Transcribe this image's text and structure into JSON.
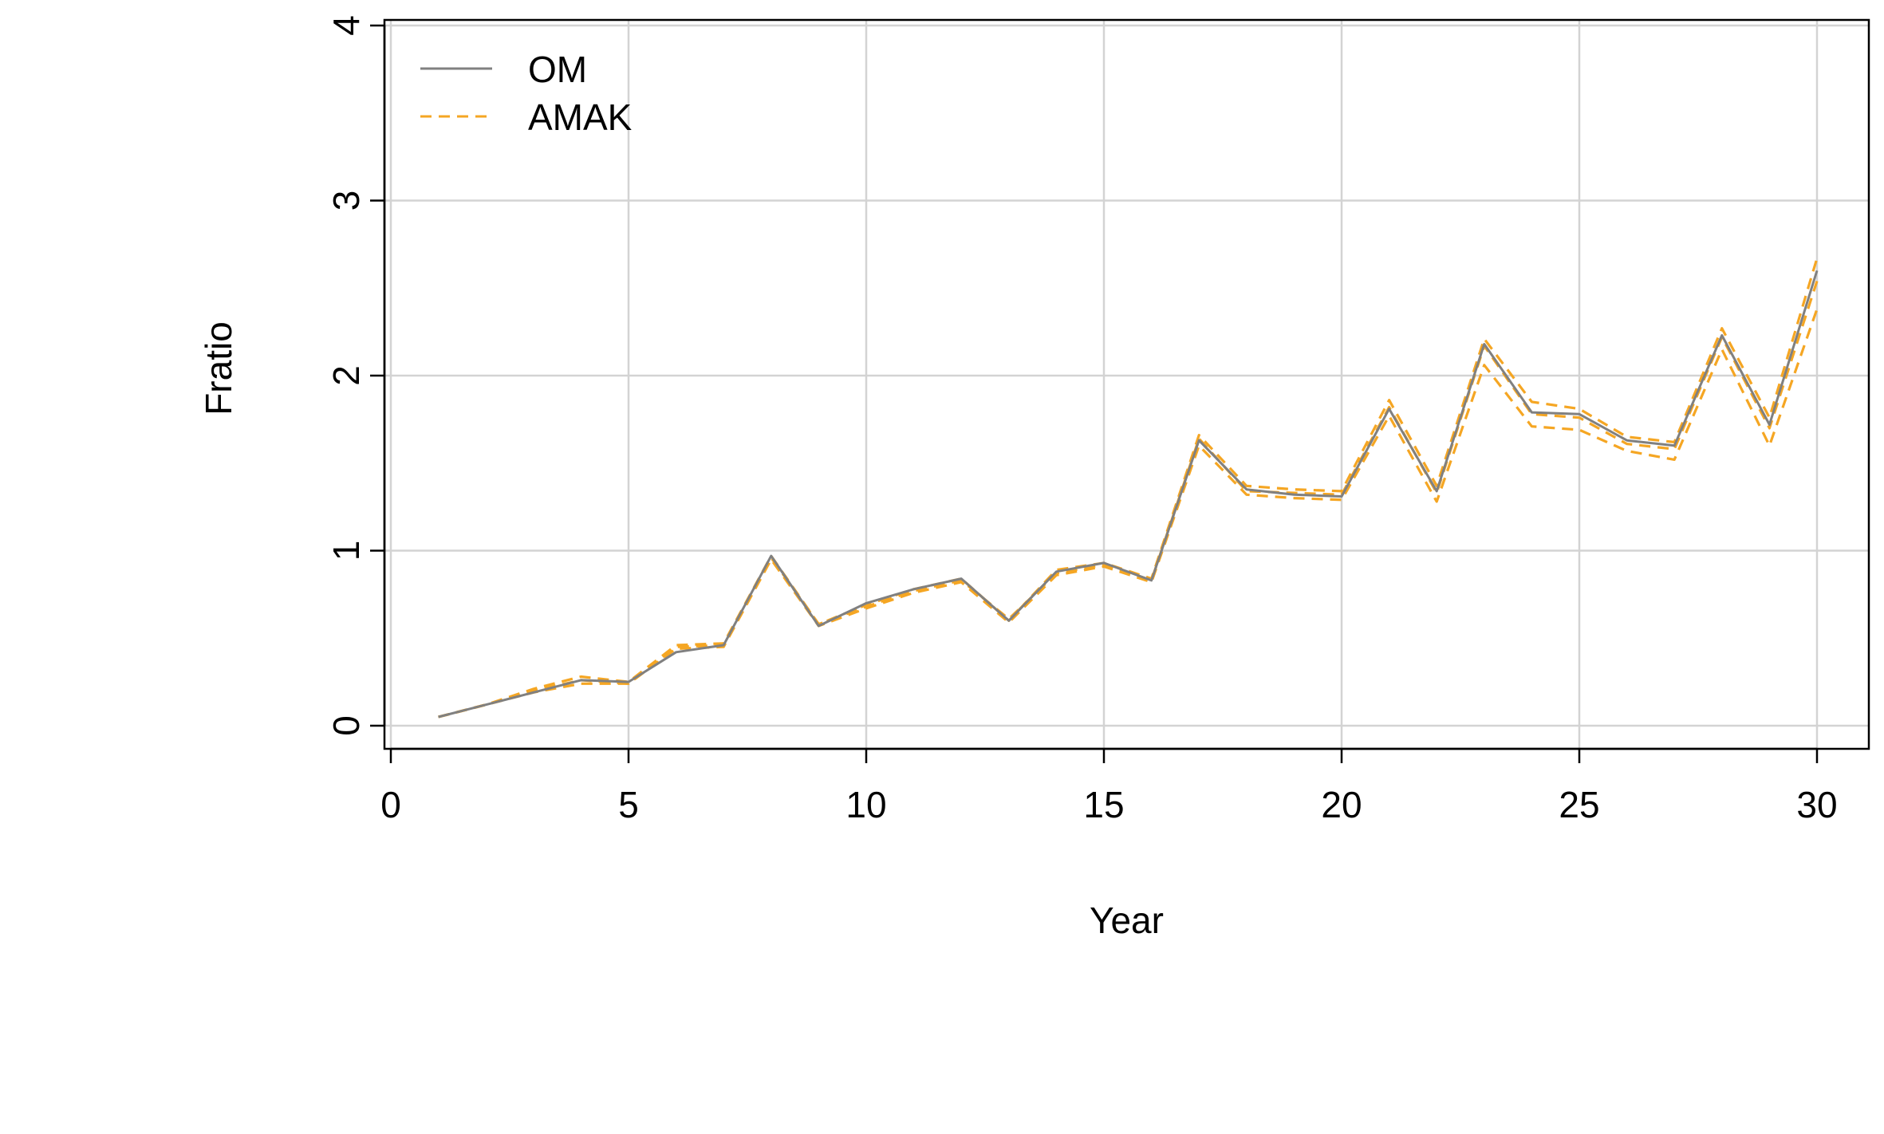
{
  "chart_data": {
    "type": "line",
    "title": "",
    "xlabel": "Year",
    "ylabel": "Fratio",
    "xlim": [
      0,
      30
    ],
    "ylim": [
      0,
      4
    ],
    "xticks": [
      0,
      5,
      10,
      15,
      20,
      25,
      30
    ],
    "yticks": [
      0,
      1,
      2,
      3,
      4
    ],
    "grid": true,
    "legend_position": "top-left",
    "x": [
      1,
      2,
      3,
      4,
      5,
      6,
      7,
      8,
      9,
      10,
      11,
      12,
      13,
      14,
      15,
      16,
      17,
      18,
      19,
      20,
      21,
      22,
      23,
      24,
      25,
      26,
      27,
      28,
      29,
      30
    ],
    "series": [
      {
        "name": "OM",
        "color": "#808080",
        "style": "solid",
        "values": [
          0.05,
          0.12,
          0.19,
          0.26,
          0.25,
          0.42,
          0.46,
          0.97,
          0.57,
          0.7,
          0.78,
          0.84,
          0.6,
          0.88,
          0.93,
          0.83,
          1.63,
          1.35,
          1.32,
          1.31,
          1.81,
          1.34,
          2.18,
          1.79,
          1.78,
          1.63,
          1.6,
          2.23,
          1.72,
          2.6
        ]
      },
      {
        "name": "AMAK",
        "color": "#F5A623",
        "style": "dashed",
        "values": [
          0.05,
          0.12,
          0.2,
          0.26,
          0.24,
          0.45,
          0.46,
          0.96,
          0.58,
          0.68,
          0.77,
          0.83,
          0.61,
          0.87,
          0.92,
          0.83,
          1.64,
          1.34,
          1.33,
          1.32,
          1.82,
          1.33,
          2.17,
          1.78,
          1.76,
          1.61,
          1.58,
          2.22,
          1.7,
          2.54
        ]
      },
      {
        "name": "",
        "color": "#F5A623",
        "style": "dashed",
        "values": [
          0.05,
          0.12,
          0.21,
          0.28,
          0.25,
          0.46,
          0.47,
          0.97,
          0.58,
          0.69,
          0.78,
          0.84,
          0.6,
          0.89,
          0.93,
          0.84,
          1.66,
          1.37,
          1.35,
          1.34,
          1.86,
          1.37,
          2.21,
          1.85,
          1.81,
          1.65,
          1.62,
          2.27,
          1.76,
          2.67
        ]
      },
      {
        "name": "",
        "color": "#F5A623",
        "style": "dashed",
        "values": [
          0.05,
          0.12,
          0.19,
          0.24,
          0.24,
          0.44,
          0.45,
          0.95,
          0.57,
          0.67,
          0.76,
          0.82,
          0.59,
          0.86,
          0.91,
          0.82,
          1.6,
          1.32,
          1.3,
          1.29,
          1.77,
          1.28,
          2.06,
          1.71,
          1.69,
          1.57,
          1.52,
          2.15,
          1.6,
          2.38
        ]
      }
    ]
  }
}
